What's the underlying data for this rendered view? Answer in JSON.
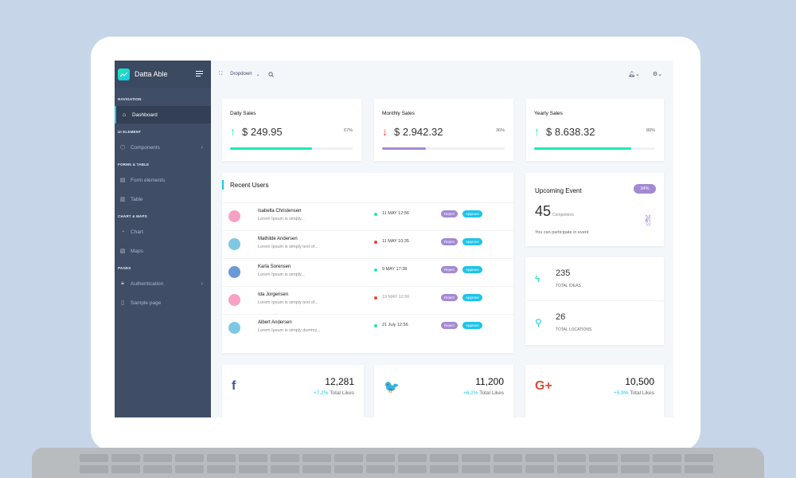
{
  "brand": {
    "name": "Datta Able"
  },
  "header": {
    "dropdown_label": "Dropdown"
  },
  "sidebar": {
    "sections": [
      {
        "caption": "Navigation",
        "items": [
          {
            "label": "Dashboard",
            "icon": "home-icon",
            "active": true
          }
        ]
      },
      {
        "caption": "UI Element",
        "items": [
          {
            "label": "Components",
            "icon": "box-icon",
            "has_children": true
          }
        ]
      },
      {
        "caption": "Forms & Table",
        "items": [
          {
            "label": "Form elements",
            "icon": "file-icon"
          },
          {
            "label": "Table",
            "icon": "server-icon"
          }
        ]
      },
      {
        "caption": "Chart & Maps",
        "items": [
          {
            "label": "Chart",
            "icon": "pie-chart-icon"
          },
          {
            "label": "Maps",
            "icon": "map-icon"
          }
        ]
      },
      {
        "caption": "Pages",
        "items": [
          {
            "label": "Authentication",
            "icon": "lock-icon",
            "has_children": true
          },
          {
            "label": "Sample page",
            "icon": "sidebar-icon"
          }
        ]
      }
    ]
  },
  "stats": [
    {
      "title": "Daily Sales",
      "value": "$ 249.95",
      "direction": "up",
      "percent": "67%",
      "progress": 0.67,
      "color": "#1de9b6"
    },
    {
      "title": "Monthly Sales",
      "value": "$ 2.942.32",
      "direction": "down",
      "percent": "36%",
      "progress": 0.36,
      "color": "#a389d4"
    },
    {
      "title": "Yearly Sales",
      "value": "$ 8.638.32",
      "direction": "up",
      "percent": "80%",
      "progress": 0.8,
      "color": "#1de9b6"
    }
  ],
  "recent_users": {
    "title": "Recent Users",
    "reject_label": "Reject",
    "approve_label": "Approve",
    "rows": [
      {
        "name": "Isabella Christensen",
        "desc": "Lorem Ipsum is simply...",
        "date": "11 MAY 12:56",
        "status_color": "#1de9b6"
      },
      {
        "name": "Mathilde Andersen",
        "desc": "Lorem Ipsum is simply text of...",
        "date": "11 MAY 10:35",
        "status_color": "#f44236"
      },
      {
        "name": "Karla Sorensen",
        "desc": "Lorem Ipsum is simply...",
        "date": "9 MAY 17:38",
        "status_color": "#1de9b6"
      },
      {
        "name": "Ida Jorgensen",
        "desc": "Lorem Ipsum is simply text of...",
        "date": "19 MAY 12:56",
        "status_color": "#f44236"
      },
      {
        "name": "Albert Andersen",
        "desc": "Lorem Ipsum is simply dummy...",
        "date": "21 July 12:56",
        "status_color": "#1de9b6"
      }
    ]
  },
  "upcoming_event": {
    "title": "Upcoming Event",
    "badge": "34%",
    "count": "45",
    "count_label": "Competitors",
    "subtitle": "You can participate in event"
  },
  "ideas": [
    {
      "value": "235",
      "label": "Total Ideas",
      "icon": "zap-icon",
      "color": "#1de9b6"
    },
    {
      "value": "26",
      "label": "Total Locations",
      "icon": "map-pin-icon",
      "color": "#1dc4e9"
    }
  ],
  "social": [
    {
      "network": "facebook",
      "icon_glyph": "f",
      "value": "12,281",
      "change": "+7.2%",
      "label": "Total Likes",
      "color": "#3b5998"
    },
    {
      "network": "twitter",
      "icon_glyph": "🐦",
      "value": "11,200",
      "change": "+6.2%",
      "label": "Total Likes",
      "color": "#1da1f2"
    },
    {
      "network": "google-plus",
      "icon_glyph": "G+",
      "value": "10,500",
      "change": "+5.9%",
      "label": "Total Likes",
      "color": "#dd4b39"
    }
  ]
}
